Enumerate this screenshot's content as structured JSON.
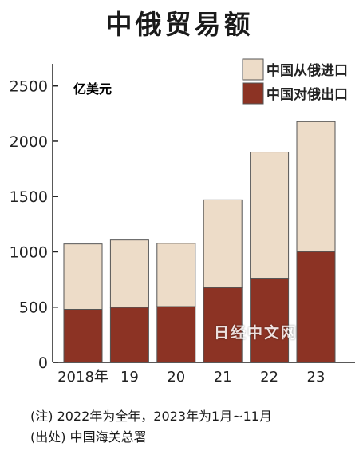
{
  "title": "中俄贸易额",
  "unit_label": "亿美元",
  "notes": {
    "line1": "(注) 2022年为全年，2023年为1月~11月",
    "line2": "(出处) 中国海关总署"
  },
  "watermark": "日经中文网",
  "colors": {
    "import": "#eddcc8",
    "export": "#8c3324",
    "axis": "#222222"
  },
  "chart_data": {
    "type": "bar",
    "stacked": true,
    "categories": [
      "2018年",
      "19",
      "20",
      "21",
      "22",
      "23"
    ],
    "series": [
      {
        "name": "中国对俄出口",
        "values": [
          480,
          497,
          505,
          676,
          761,
          1001
        ]
      },
      {
        "name": "中国从俄进口",
        "values": [
          591,
          610,
          572,
          794,
          1141,
          1177
        ]
      }
    ],
    "totals": [
      1071,
      1107,
      1077,
      1470,
      1902,
      2178
    ],
    "ylabel": "亿美元",
    "ylim": [
      0,
      2700
    ],
    "yticks": [
      0,
      500,
      1000,
      1500,
      2000,
      2500
    ],
    "legend": "top-right",
    "grid": false
  }
}
